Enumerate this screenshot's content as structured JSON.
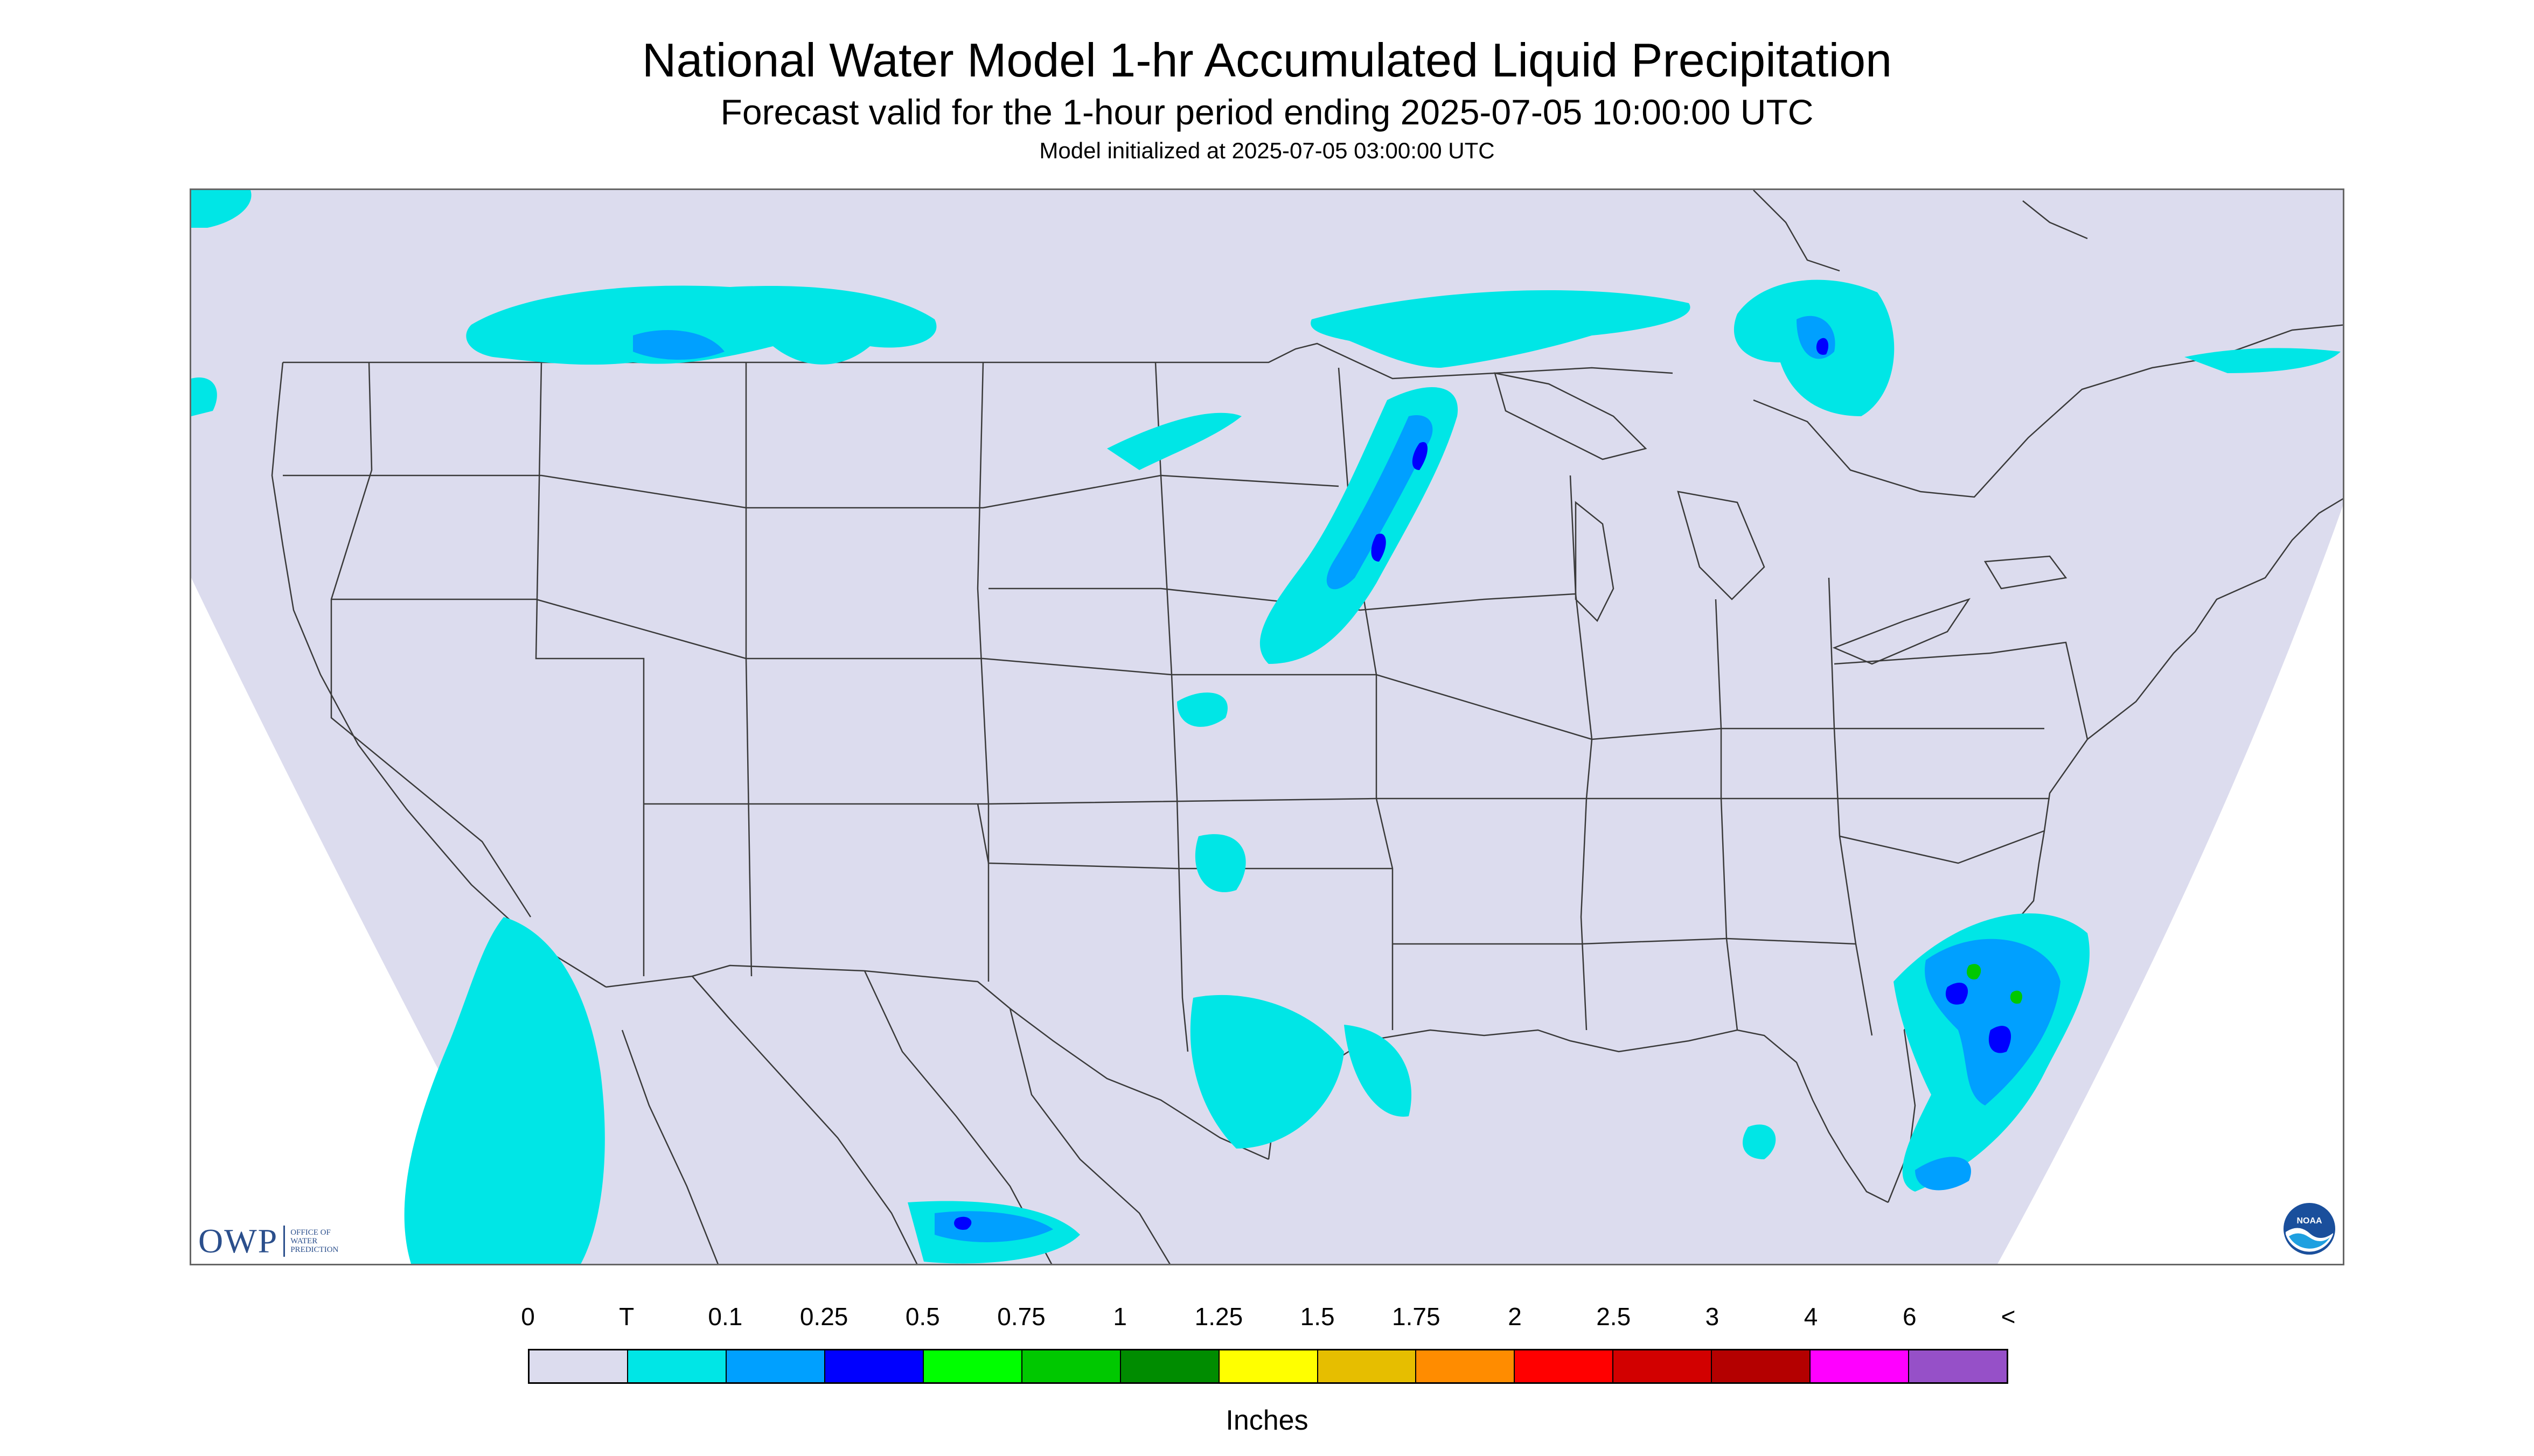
{
  "header": {
    "title": "National Water Model 1-hr Accumulated Liquid Precipitation",
    "subtitle": "Forecast valid for the 1-hour period ending 2025-07-05 10:00:00 UTC",
    "init": "Model initialized at 2025-07-05 03:00:00 UTC"
  },
  "logos": {
    "owp_mark": "OWP",
    "owp_text": [
      "OFFICE OF",
      "WATER",
      "PREDICTION"
    ],
    "noaa_text": "NOAA"
  },
  "colors": {
    "domain_fill": "#dcdcee",
    "state_line": "#3a3a3a",
    "precip_trace": "#00e6e6"
  },
  "legend": {
    "ticks": [
      "0",
      "T",
      "0.1",
      "0.25",
      "0.5",
      "0.75",
      "1",
      "1.25",
      "1.5",
      "1.75",
      "2",
      "2.5",
      "3",
      "4",
      "6",
      "<"
    ],
    "colors": [
      "#dcdcee",
      "#00e6e6",
      "#00a0ff",
      "#0000ff",
      "#00ff00",
      "#00c800",
      "#008c00",
      "#ffff00",
      "#e6be00",
      "#ff8c00",
      "#ff0000",
      "#d20000",
      "#b40000",
      "#ff00ff",
      "#9650c8"
    ],
    "units": "Inches"
  }
}
